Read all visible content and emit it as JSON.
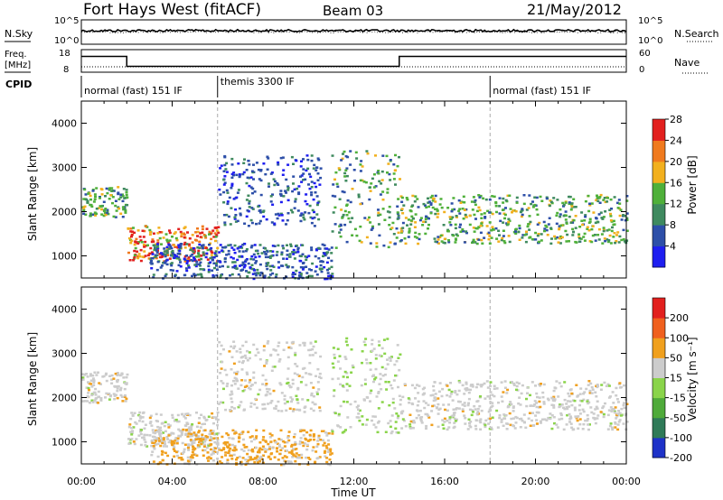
{
  "header": {
    "title": "Fort Hays West (fitACF)",
    "beam": "Beam 03",
    "date": "21/May/2012"
  },
  "top_panel": {
    "left_label": "N.Sky",
    "right_label": "N.Search",
    "left_ticks": [
      "10^5",
      "10^0"
    ],
    "right_ticks": [
      "10^5",
      "10^0"
    ]
  },
  "freq_panel": {
    "left_label_1": "Freq.",
    "left_label_2": "[MHz]",
    "right_label": "Nave",
    "left_ticks": [
      "18",
      "8"
    ],
    "right_ticks": [
      "60",
      "0"
    ],
    "freq_mhz": [
      [
        0,
        15.5
      ],
      [
        2,
        10.5
      ],
      [
        14,
        10.5
      ],
      [
        14,
        15.5
      ],
      [
        24,
        15.5
      ]
    ],
    "nave": [
      [
        0,
        10
      ],
      [
        24,
        10
      ]
    ]
  },
  "cpid": {
    "label": "CPID",
    "segments": [
      {
        "start": 0,
        "end": 6,
        "text": "normal (fast) 151 IF"
      },
      {
        "start": 6,
        "end": 18,
        "text": "themis 3300 IF"
      },
      {
        "start": 18,
        "end": 24,
        "text": "normal (fast) 151 IF"
      }
    ]
  },
  "x_axis": {
    "label": "Time UT",
    "range": [
      0,
      24
    ],
    "ticks": [
      0,
      4,
      8,
      12,
      16,
      20,
      24
    ],
    "tick_labels": [
      "00:00",
      "04:00",
      "08:00",
      "12:00",
      "16:00",
      "20:00",
      "00:00"
    ]
  },
  "chart_data": [
    {
      "type": "heatmap",
      "name": "power",
      "ylabel": "Slant Range [km]",
      "ylim": [
        500,
        4500
      ],
      "yticks": [
        1000,
        2000,
        3000,
        4000
      ],
      "xlim": [
        0,
        24
      ],
      "colorbar": {
        "label": "Power [dB]",
        "ticks": [
          "4",
          "8",
          "12",
          "16",
          "20",
          "24",
          "28"
        ],
        "colors": [
          "#1e1ef0",
          "#2d4fa8",
          "#3f8a5f",
          "#4fb03a",
          "#f2b01e",
          "#f07a1e",
          "#e2201e"
        ]
      },
      "bands": [
        {
          "t": [
            0,
            2
          ],
          "range": [
            1900,
            2600
          ],
          "level": "mid"
        },
        {
          "t": [
            2,
            6
          ],
          "range": [
            900,
            1700
          ],
          "level": "high"
        },
        {
          "t": [
            3,
            11
          ],
          "range": [
            500,
            1300
          ],
          "level": "low"
        },
        {
          "t": [
            6,
            10.5
          ],
          "range": [
            1700,
            3300
          ],
          "level": "low"
        },
        {
          "t": [
            11,
            14
          ],
          "range": [
            1200,
            3400
          ],
          "level": "mid"
        },
        {
          "t": [
            14,
            24
          ],
          "range": [
            1300,
            2400
          ],
          "level": "mid"
        }
      ]
    },
    {
      "type": "heatmap",
      "name": "velocity",
      "ylabel": "Slant Range [km]",
      "ylim": [
        500,
        4500
      ],
      "yticks": [
        1000,
        2000,
        3000,
        4000
      ],
      "xlim": [
        0,
        24
      ],
      "colorbar": {
        "label": "Velocity [m s⁻¹]",
        "ticks": [
          "200",
          "100",
          "50",
          "15",
          "-15",
          "-50",
          "-100",
          "-200"
        ],
        "colors": [
          "#1e32c8",
          "#2f7a58",
          "#4faa3a",
          "#8ad44a",
          "#cccccc",
          "#f0a01e",
          "#f0601e",
          "#e2201e"
        ]
      }
    }
  ]
}
